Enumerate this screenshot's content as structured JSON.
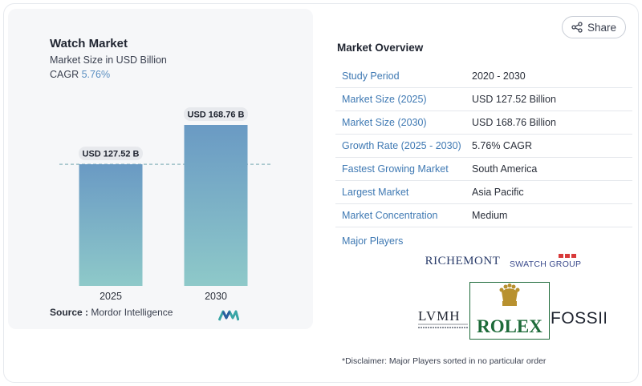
{
  "chart": {
    "title": "Watch Market",
    "subtitle": "Market Size in USD Billion",
    "cagr_label": "CAGR",
    "cagr_value": "5.76%",
    "source_label": "Source :",
    "source_value": "Mordor Intelligence",
    "logo_icon": "mordor-intelligence-logo"
  },
  "chart_data": {
    "type": "bar",
    "title": "Watch Market",
    "subtitle": "Market Size in USD Billion",
    "categories": [
      "2025",
      "2030"
    ],
    "values": [
      127.52,
      168.76
    ],
    "data_labels": [
      "USD 127.52 B",
      "USD 168.76 B"
    ],
    "bar_color_top": "#6a9ac4",
    "bar_color_bottom": "#8ec9c9",
    "reference_line": "dashed at first bar value",
    "grid": false
  },
  "share": {
    "label": "Share",
    "icon": "share-icon"
  },
  "overview": {
    "title": "Market Overview",
    "rows": [
      {
        "label": "Study Period",
        "value": "2020 - 2030"
      },
      {
        "label": "Market Size (2025)",
        "value": "USD 127.52 Billion"
      },
      {
        "label": "Market Size (2030)",
        "value": "USD 168.76 Billion"
      },
      {
        "label": "Growth Rate (2025 - 2030)",
        "value": "5.76% CAGR"
      },
      {
        "label": "Fastest Growing Market",
        "value": "South America"
      },
      {
        "label": "Largest Market",
        "value": "Asia Pacific"
      },
      {
        "label": "Market Concentration",
        "value": "Medium"
      }
    ]
  },
  "players": {
    "label": "Major Players",
    "logos": {
      "richemont": "RICHEMONT",
      "swatch": "SWATCH GROUP",
      "lvmh": "LVMH",
      "rolex": "ROLEX",
      "fossil": "FOSSIL"
    }
  },
  "disclaimer": "*Disclaimer: Major Players sorted in no particular order",
  "colors": {
    "accent": "#3f79b3",
    "cagr": "#5b8fc1",
    "rolex_green": "#1e6b3a",
    "rolex_gold": "#b8912f"
  }
}
